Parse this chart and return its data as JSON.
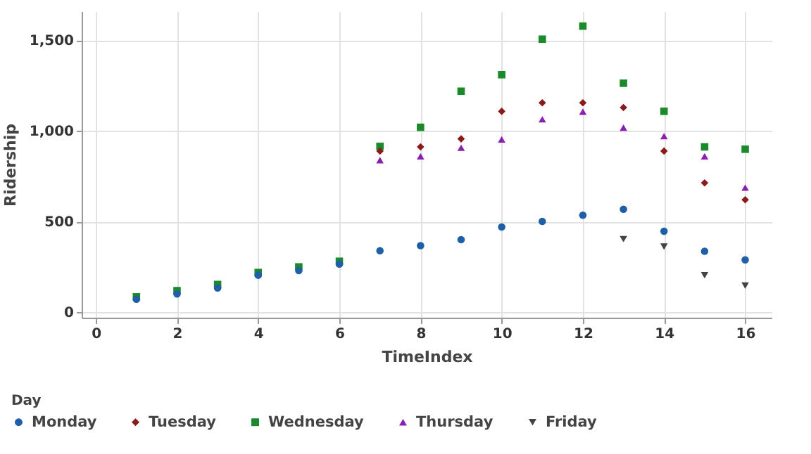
{
  "chart_data": {
    "type": "scatter",
    "xlabel": "TimeIndex",
    "ylabel": "Ridership",
    "legend_title": "Day",
    "x": [
      1,
      2,
      3,
      4,
      5,
      6,
      7,
      8,
      9,
      10,
      11,
      12,
      13,
      14,
      15,
      16
    ],
    "series": [
      {
        "name": "Monday",
        "color": "#1f5fa8",
        "marker": "circle",
        "values": [
          72,
          101,
          134,
          204,
          230,
          266,
          339,
          367,
          400,
          470,
          501,
          535,
          568,
          447,
          336,
          289
        ]
      },
      {
        "name": "Tuesday",
        "color": "#8b1a1a",
        "marker": "diamond",
        "values": [
          null,
          null,
          null,
          null,
          null,
          null,
          889,
          912,
          956,
          1108,
          1155,
          1155,
          1129,
          889,
          713,
          620
        ]
      },
      {
        "name": "Wednesday",
        "color": "#1a8a2a",
        "marker": "square",
        "values": [
          85,
          119,
          153,
          219,
          250,
          281,
          915,
          1020,
          1219,
          1310,
          1506,
          1578,
          1263,
          1108,
          912,
          899
        ]
      },
      {
        "name": "Thursday",
        "color": "#8a1fb0",
        "marker": "triangle",
        "values": [
          null,
          null,
          null,
          null,
          null,
          null,
          839,
          860,
          907,
          953,
          1064,
          1106,
          1018,
          971,
          860,
          687
        ]
      },
      {
        "name": "Friday",
        "color": "#444444",
        "marker": "triangle-down",
        "values": [
          null,
          null,
          null,
          null,
          null,
          null,
          null,
          null,
          null,
          null,
          null,
          null,
          403,
          362,
          204,
          147
        ]
      }
    ],
    "xlim": [
      -0.35,
      16.65
    ],
    "xticks": [
      0,
      2,
      4,
      6,
      8,
      10,
      12,
      14,
      16
    ],
    "ylim": [
      -30,
      1660
    ],
    "yticks": [
      0,
      500,
      {
        "value": 1000,
        "label": "1,000"
      },
      {
        "value": 1500,
        "label": "1,500"
      }
    ],
    "grid": true,
    "legend": "bottom"
  }
}
